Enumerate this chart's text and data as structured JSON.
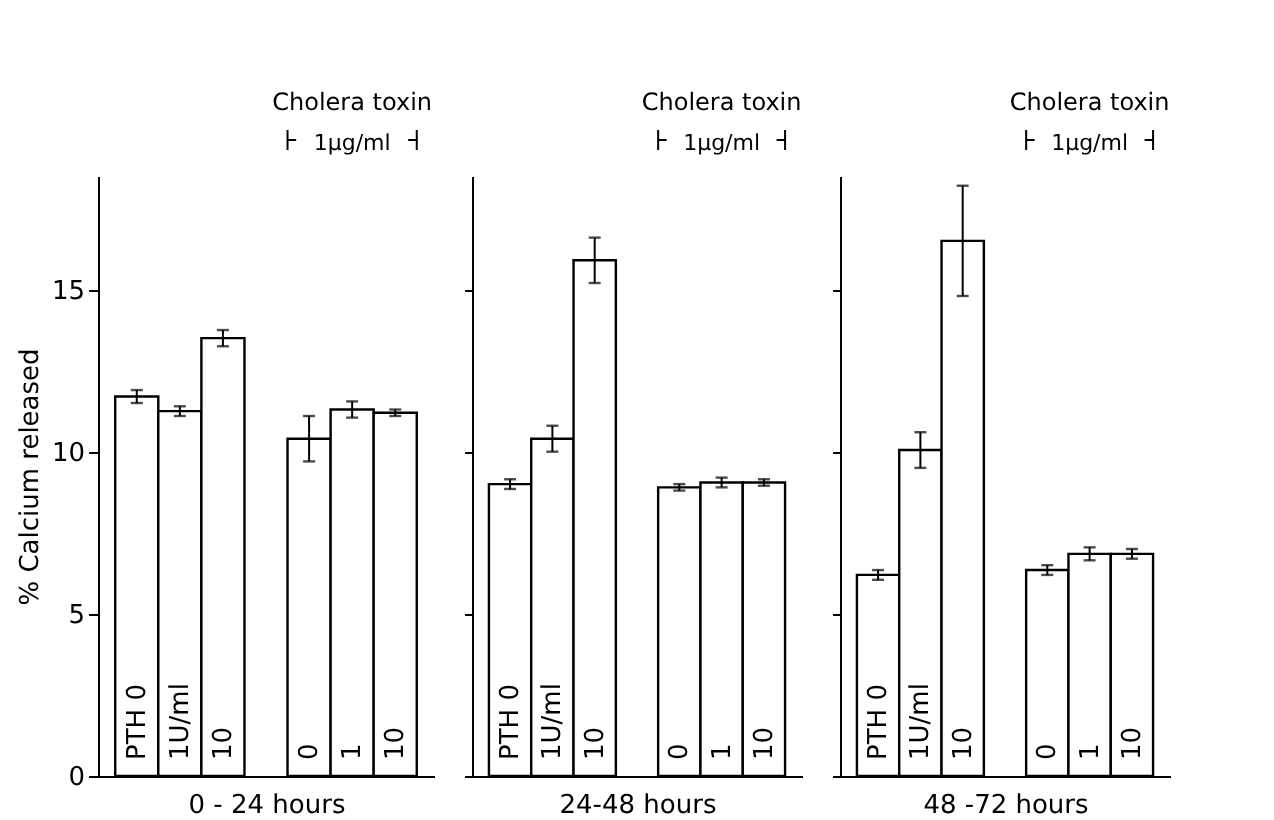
{
  "chart_data": [
    {
      "type": "bar",
      "xlabel": "0 - 24 hours",
      "ylabel": "% Calcium released",
      "categories": [
        "PTH 0",
        "1U/ml",
        "10",
        "0",
        "1",
        "10"
      ],
      "values": [
        11.7,
        11.25,
        13.5,
        10.4,
        11.3,
        11.2
      ],
      "errors": [
        0.2,
        0.15,
        0.25,
        0.7,
        0.25,
        0.1
      ],
      "color": "#ffffff",
      "ylim": [
        0,
        18.5
      ],
      "yticks": [
        0,
        5,
        10,
        15
      ],
      "annotations": [
        "Cholera toxin",
        "1μg/ml"
      ]
    },
    {
      "type": "bar",
      "xlabel": "24-48 hours",
      "categories": [
        "PTH 0",
        "1U/ml",
        "10",
        "0",
        "1",
        "10"
      ],
      "values": [
        9.0,
        10.4,
        15.9,
        8.9,
        9.05,
        9.05
      ],
      "errors": [
        0.15,
        0.4,
        0.7,
        0.1,
        0.15,
        0.1
      ],
      "color": "#ffffff",
      "ylim": [
        0,
        18.5
      ],
      "yticks": [
        0,
        5,
        10,
        15
      ],
      "tick_labels": "x",
      "annotations": [
        "Cholera toxin",
        "1μg/ml"
      ]
    },
    {
      "type": "bar",
      "xlabel": "48 -72 hours",
      "categories": [
        "PTH 0",
        "1U/ml",
        "10",
        "0",
        "1",
        "10"
      ],
      "values": [
        6.2,
        10.05,
        16.5,
        6.35,
        6.85,
        6.85
      ],
      "errors": [
        0.15,
        0.55,
        1.7,
        0.15,
        0.2,
        0.15
      ],
      "color": "#ffffff",
      "ylim": [
        0,
        18.5
      ],
      "yticks": [
        0,
        5,
        10,
        15
      ],
      "tick_labels": "x",
      "annotations": [
        "Cholera toxin",
        "1μg/ml"
      ]
    }
  ]
}
